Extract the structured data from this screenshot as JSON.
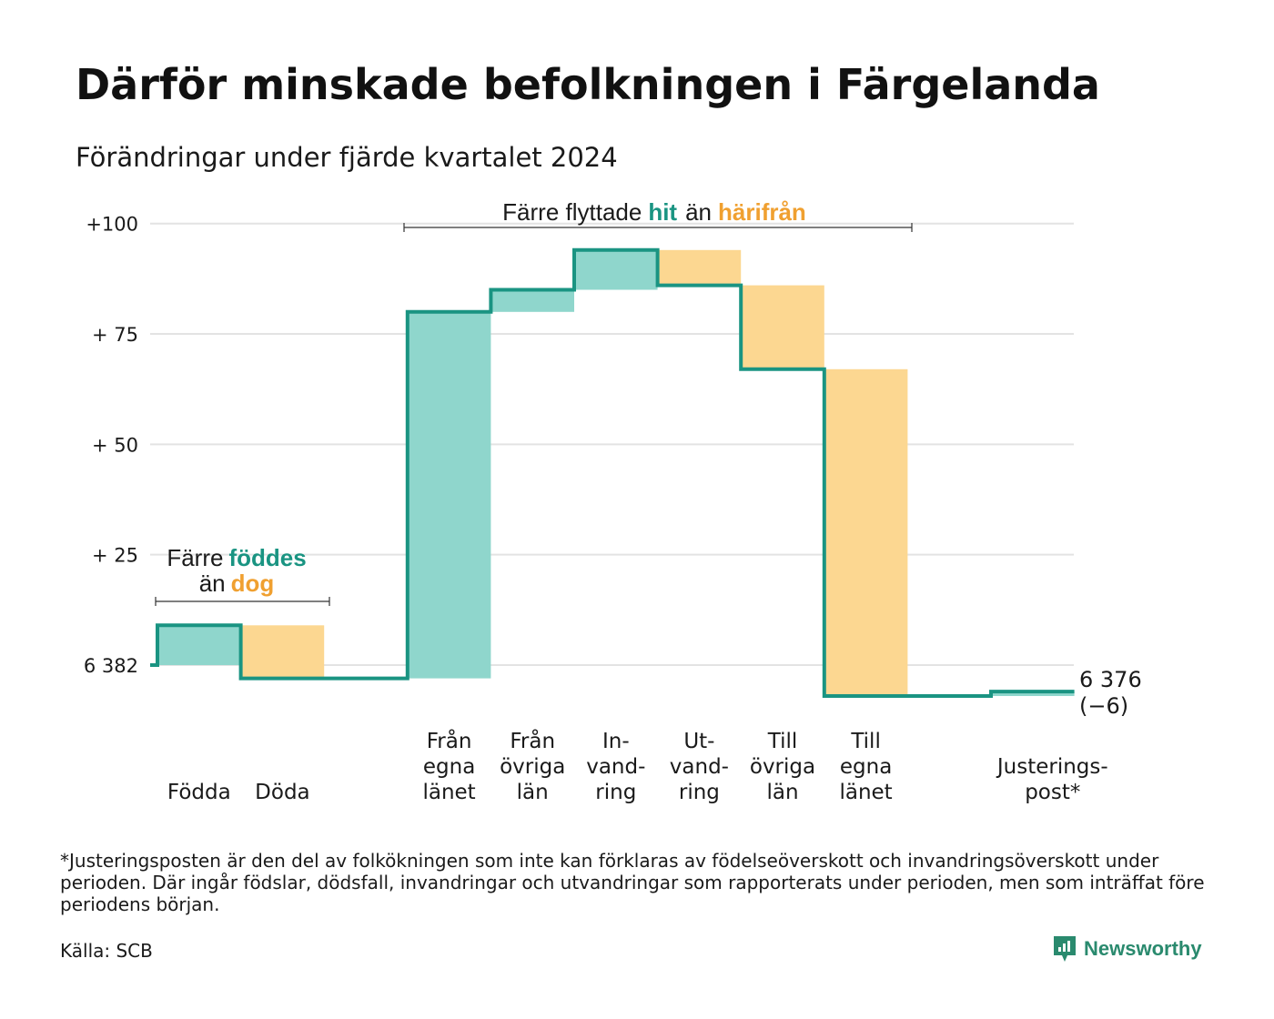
{
  "header": {
    "title": "Därför minskade befolkningen i Färgelanda",
    "subtitle": "Förändringar under fjärde kvartalet 2024"
  },
  "annotations": {
    "birth": {
      "prefix": "Färre",
      "green": "föddes",
      "mid": "än",
      "orange": "dog"
    },
    "migration": {
      "prefix": "Färre flyttade",
      "green": "hit",
      "mid": "än",
      "orange": "härifrån"
    }
  },
  "end_label": {
    "value": "6 376",
    "change": "(−6)"
  },
  "footnote": "*Justeringsposten är den del av folkökningen som inte kan förklaras av födelseöverskott och invandringsöverskott under perioden. Där ingår födslar, dödsfall, invandringar och utvandringar som rapporterats under perioden, men som inträffat före periodens början.",
  "source": "Källa: SCB",
  "logo": {
    "text": "Newsworthy"
  },
  "colors": {
    "increase": "#8fd6cc",
    "decrease": "#fcd791",
    "line": "#1a9482",
    "grid": "#e3e3e3",
    "accent_green": "#1a9482",
    "accent_orange": "#f0a030"
  },
  "chart_data": {
    "type": "waterfall",
    "start_value": 6382,
    "end_value": 6376,
    "net_change": -6,
    "y_ticks": [
      {
        "value": 0,
        "label": "6 382"
      },
      {
        "value": 25,
        "label": "+ 25"
      },
      {
        "value": 50,
        "label": "+ 50"
      },
      {
        "value": 75,
        "label": "+ 75"
      },
      {
        "value": 100,
        "label": "+100"
      }
    ],
    "ylim": [
      -8,
      100
    ],
    "grid": true,
    "steps": [
      {
        "category": "Födda",
        "label_lines": [
          "Födda"
        ],
        "change": 9,
        "kind": "increase"
      },
      {
        "category": "Döda",
        "label_lines": [
          "Döda"
        ],
        "change": -12,
        "kind": "decrease"
      },
      {
        "category": "",
        "label_lines": [],
        "change": 0,
        "kind": "gap"
      },
      {
        "category": "Från egna länet",
        "label_lines": [
          "Från",
          "egna",
          "länet"
        ],
        "change": 83,
        "kind": "increase"
      },
      {
        "category": "Från övriga län",
        "label_lines": [
          "Från",
          "övriga",
          "län"
        ],
        "change": 5,
        "kind": "increase"
      },
      {
        "category": "Invandring",
        "label_lines": [
          "In-",
          "vand-",
          "ring"
        ],
        "change": 9,
        "kind": "increase"
      },
      {
        "category": "Utvandring",
        "label_lines": [
          "Ut-",
          "vand-",
          "ring"
        ],
        "change": -8,
        "kind": "decrease"
      },
      {
        "category": "Till övriga län",
        "label_lines": [
          "Till",
          "övriga",
          "län"
        ],
        "change": -19,
        "kind": "decrease"
      },
      {
        "category": "Till egna länet",
        "label_lines": [
          "Till",
          "egna",
          "länet"
        ],
        "change": -74,
        "kind": "decrease"
      },
      {
        "category": "",
        "label_lines": [],
        "change": 0,
        "kind": "gap"
      },
      {
        "category": "Justeringspost*",
        "label_lines": [
          "Justerings-",
          "post*"
        ],
        "change": 1,
        "kind": "increase"
      }
    ]
  }
}
